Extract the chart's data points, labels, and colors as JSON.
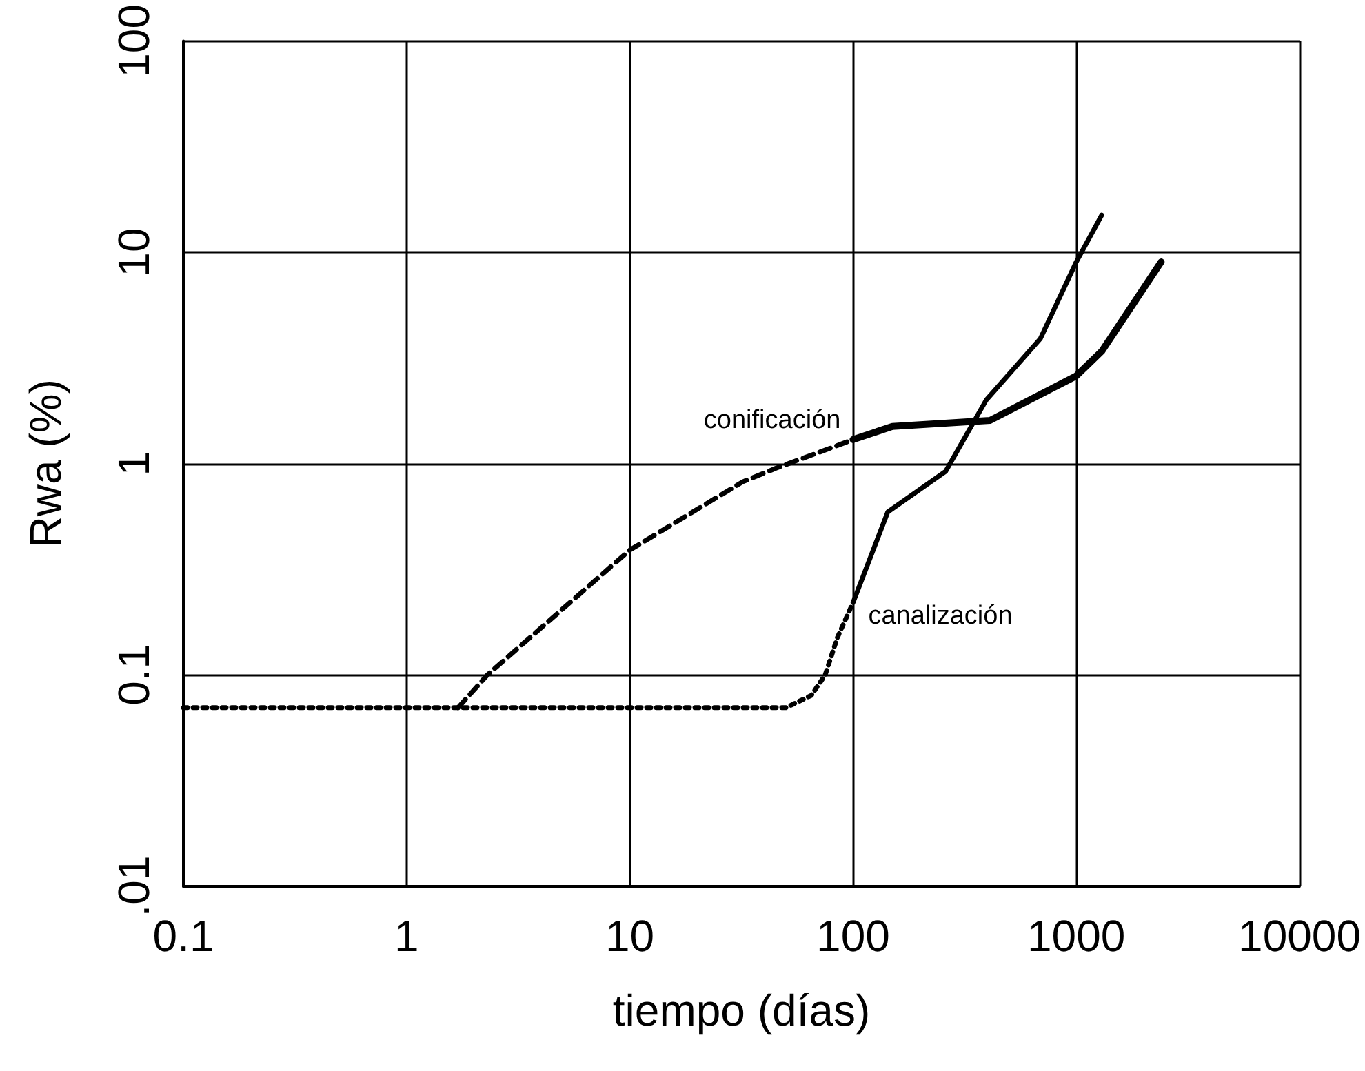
{
  "chart_data": {
    "type": "line",
    "xlabel": "tiempo (días)",
    "ylabel": "Rwa (%)",
    "log": "xy",
    "grid": true,
    "marker": "none",
    "xlim": [
      0.1,
      10000
    ],
    "xticks": [
      0.1,
      1,
      10,
      100,
      1000,
      10000
    ],
    "ylim": [
      0.01,
      100
    ],
    "yticks": [
      {
        "value": 0.01,
        "label": ".01"
      },
      0.1,
      1,
      10,
      100
    ],
    "series": [
      {
        "color": "#000000",
        "line_style": "dotted",
        "x": [
          0.1,
          1,
          10,
          50,
          65,
          75,
          85,
          100
        ],
        "values": [
          0.07,
          0.07,
          0.07,
          0.07,
          0.08,
          0.1,
          0.15,
          0.22
        ]
      },
      {
        "color": "#000000",
        "line_style": "dashed",
        "x": [
          1.7,
          2.3,
          10,
          32,
          45,
          82,
          100
        ],
        "values": [
          0.07,
          0.1,
          0.39,
          0.82,
          0.95,
          1.2,
          1.3
        ]
      },
      {
        "name": "conificación",
        "color": "#000000",
        "line_style": "solid",
        "x": [
          100,
          150,
          410,
          1000,
          1300,
          2400
        ],
        "values": [
          1.3,
          1.5,
          1.6,
          2.6,
          3.4,
          9
        ]
      },
      {
        "name": "canalización",
        "color": "#000000",
        "line_style": "solid",
        "x": [
          100,
          143,
          260,
          395,
          690,
          1000,
          1300
        ],
        "values": [
          0.22,
          0.59,
          0.92,
          2,
          3.9,
          9,
          15
        ]
      }
    ]
  }
}
